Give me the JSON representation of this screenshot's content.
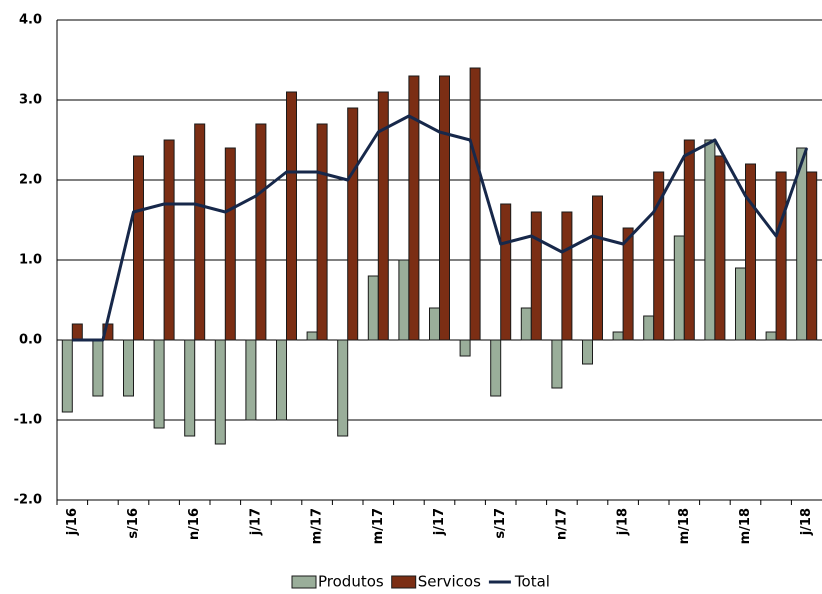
{
  "chart_data": {
    "type": "bar",
    "categories": [
      "j/16",
      null,
      "s/16",
      null,
      "n/16",
      null,
      "j/17",
      null,
      "m/17",
      null,
      "m/17",
      null,
      "j/17",
      null,
      "s/17",
      null,
      "n/17",
      null,
      "j/18",
      null,
      "m/18",
      null,
      "m/18",
      null,
      "j/18"
    ],
    "series": [
      {
        "name": "Produtos",
        "type": "bar",
        "color": "#9aae9a",
        "values": [
          -0.9,
          -0.7,
          -0.7,
          -1.1,
          -1.2,
          -1.3,
          -1.0,
          -1.0,
          0.1,
          -1.2,
          0.8,
          1.0,
          0.4,
          -0.2,
          -0.7,
          0.4,
          -0.6,
          -0.3,
          0.1,
          0.3,
          1.3,
          2.5,
          0.9,
          0.1,
          2.4
        ]
      },
      {
        "name": "Servicos",
        "type": "bar",
        "color": "#7b2e14",
        "values": [
          0.2,
          0.2,
          2.3,
          2.5,
          2.7,
          2.4,
          2.7,
          3.1,
          2.7,
          2.9,
          3.1,
          3.3,
          3.3,
          3.4,
          1.7,
          1.6,
          1.6,
          1.8,
          1.4,
          2.1,
          2.5,
          2.3,
          2.2,
          2.1,
          2.1
        ]
      },
      {
        "name": "Total",
        "type": "line",
        "color": "#17284a",
        "values": [
          0.0,
          0.0,
          1.6,
          1.7,
          1.7,
          1.6,
          1.8,
          2.1,
          2.1,
          2.0,
          2.6,
          2.8,
          2.6,
          2.5,
          1.2,
          1.3,
          1.1,
          1.3,
          1.2,
          1.6,
          2.3,
          2.5,
          1.8,
          1.3,
          2.4
        ]
      }
    ],
    "ylim": [
      -2,
      4
    ],
    "yticks": [
      {
        "value": -2,
        "label": "-2.0"
      },
      {
        "value": -1,
        "label": "-1.0"
      },
      {
        "value": 0,
        "label": "0.0"
      },
      {
        "value": 1,
        "label": "1.0"
      },
      {
        "value": 2,
        "label": "2.0"
      },
      {
        "value": 3,
        "label": "3.0"
      },
      {
        "value": 4,
        "label": "4.0"
      }
    ],
    "grid": true
  }
}
